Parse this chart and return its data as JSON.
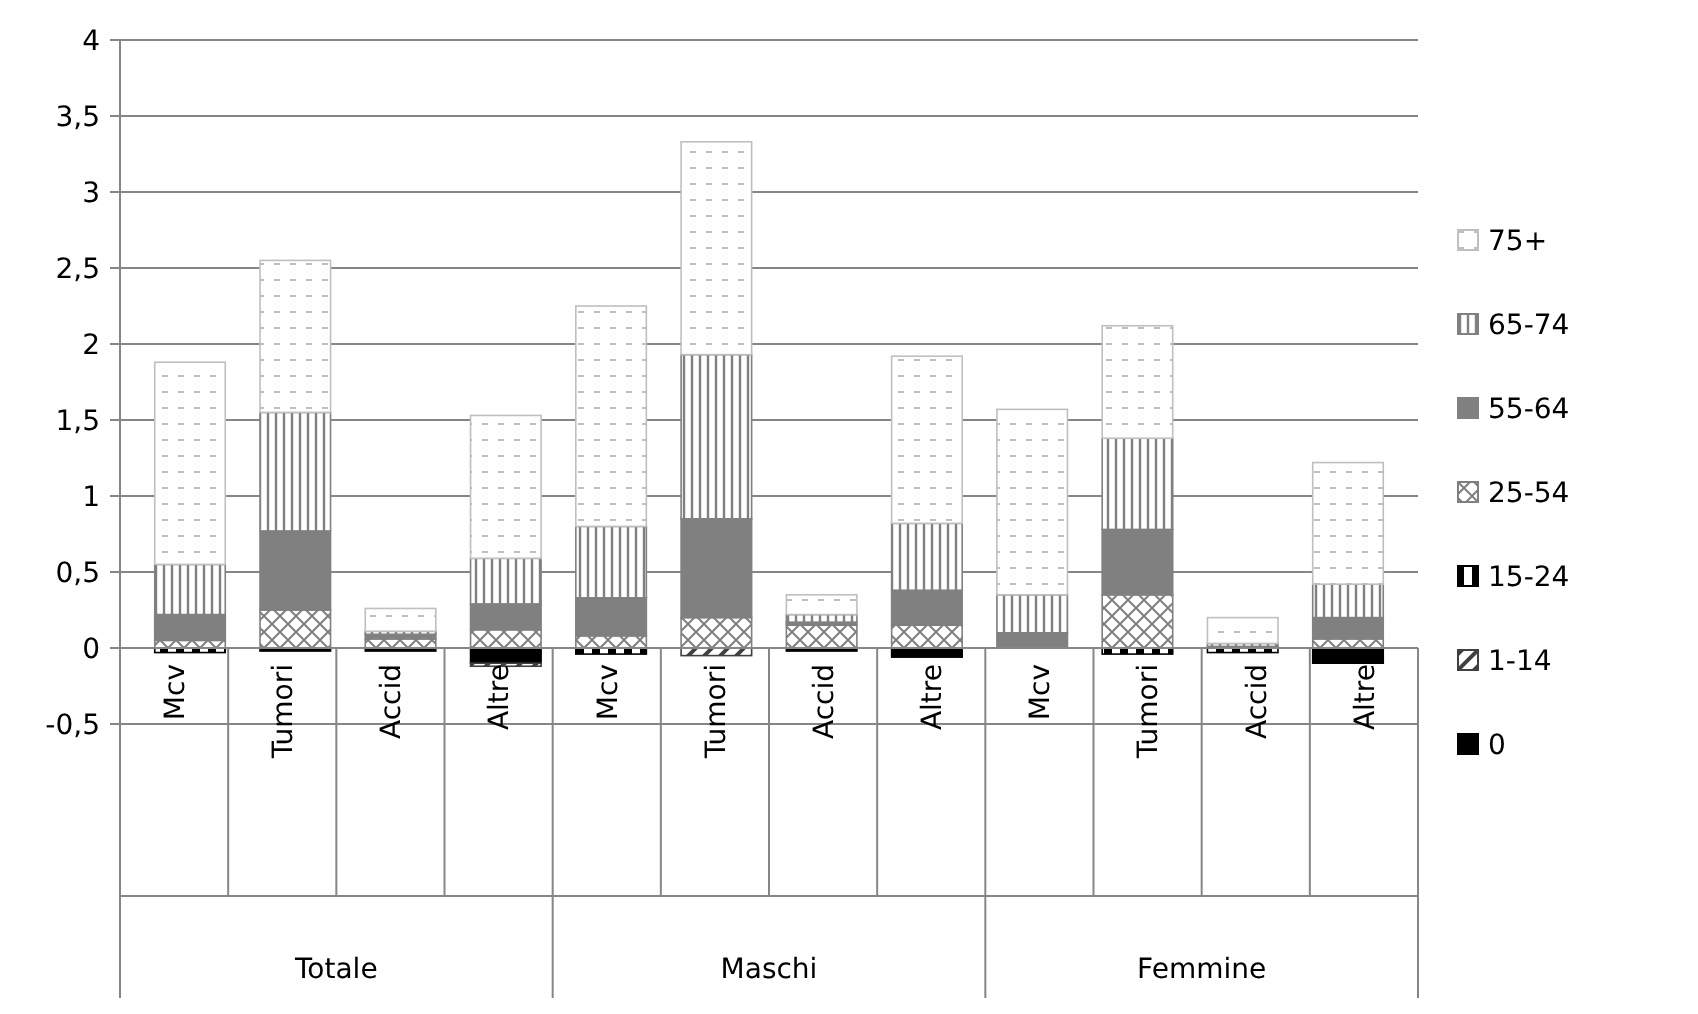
{
  "chart_data": {
    "type": "bar",
    "stacked": true,
    "categories": [
      "Mcv",
      "Tumori",
      "Accid",
      "Altre",
      "Mcv",
      "Tumori",
      "Accid",
      "Altre",
      "Mcv",
      "Tumori",
      "Accid",
      "Altre"
    ],
    "annotations": [
      "Totale",
      "Maschi",
      "Femmine"
    ],
    "series": [
      {
        "name": "0",
        "color": "#000000",
        "values": [
          0,
          -0.02,
          -0.02,
          -0.1,
          0,
          0,
          -0.02,
          -0.06,
          0,
          0,
          0,
          -0.1
        ]
      },
      {
        "name": "1-14",
        "color": "#404040",
        "values": [
          0,
          0,
          0,
          -0.02,
          0,
          -0.05,
          0,
          0,
          0,
          0,
          0,
          0
        ]
      },
      {
        "name": "15-24",
        "color": "#000000",
        "values": [
          -0.03,
          0,
          0,
          0,
          -0.04,
          0,
          0,
          0,
          0,
          -0.04,
          -0.03,
          0
        ]
      },
      {
        "name": "25-54",
        "color": "#808080",
        "values": [
          0.05,
          0.25,
          0.06,
          0.12,
          0.08,
          0.2,
          0.15,
          0.15,
          0,
          0.35,
          0,
          0.06
        ]
      },
      {
        "name": "55-64",
        "color": "#808080",
        "values": [
          0.17,
          0.52,
          0.03,
          0.17,
          0.25,
          0.65,
          0.02,
          0.23,
          0.1,
          0.43,
          0.01,
          0.14
        ]
      },
      {
        "name": "65-74",
        "color": "#808080",
        "values": [
          0.33,
          0.78,
          0.02,
          0.3,
          0.47,
          1.08,
          0.05,
          0.44,
          0.25,
          0.6,
          0.02,
          0.22
        ]
      },
      {
        "name": "75+",
        "color": "#bfbfbf",
        "values": [
          1.33,
          1,
          0.15,
          0.94,
          1.45,
          1.4,
          0.13,
          1.1,
          1.22,
          0.74,
          0.17,
          0.8
        ]
      }
    ],
    "ylim": [
      -0.5,
      4
    ],
    "yticks": [
      {
        "value": -0.5,
        "label": "-0,5"
      },
      0,
      {
        "value": 0.5,
        "label": "0,5"
      },
      1,
      {
        "value": 1.5,
        "label": "1,5"
      },
      2,
      {
        "value": 2.5,
        "label": "2,5"
      },
      3,
      {
        "value": 3.5,
        "label": "3,5"
      },
      4
    ],
    "grid": "y",
    "legend": "right"
  }
}
